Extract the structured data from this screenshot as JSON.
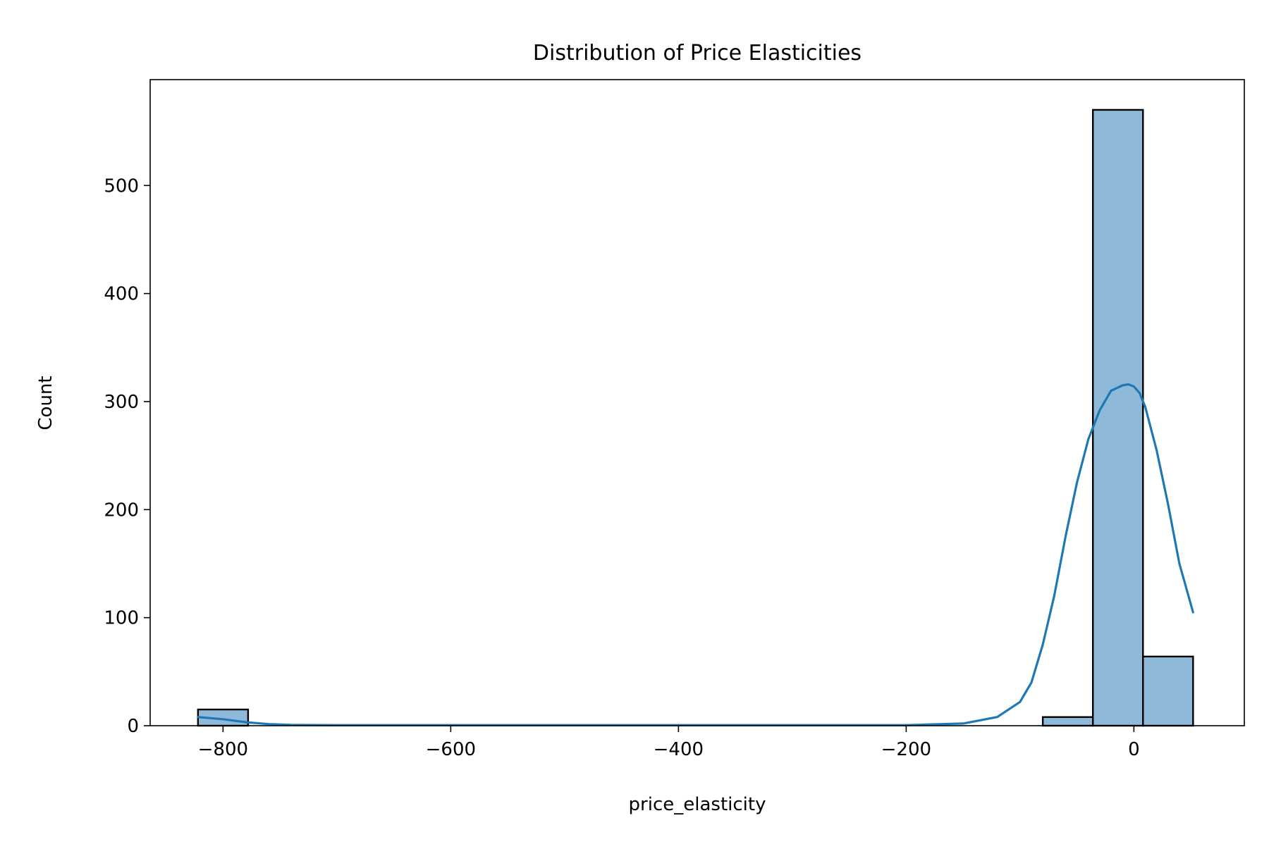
{
  "chart_data": {
    "type": "bar",
    "title": "Distribution of Price Elasticities",
    "xlabel": "price_elasticity",
    "ylabel": "Count",
    "xlim": [
      -864,
      97
    ],
    "ylim": [
      0,
      598
    ],
    "xticks": [
      -800,
      -600,
      -400,
      -200,
      0
    ],
    "xtick_labels": [
      "−800",
      "−600",
      "−400",
      "∀",
      "0"
    ],
    "yticks": [
      0,
      100,
      200,
      300,
      400,
      500
    ],
    "ytick_labels": [
      "0",
      "100",
      "200",
      "300",
      "400",
      "500"
    ],
    "grid": false,
    "bins": [
      {
        "x0": -822,
        "x1": -778,
        "count": 15
      },
      {
        "x0": -778,
        "x1": -734,
        "count": 0
      },
      {
        "x0": -734,
        "x1": -690,
        "count": 0
      },
      {
        "x0": -690,
        "x1": -646,
        "count": 0
      },
      {
        "x0": -646,
        "x1": -602,
        "count": 0
      },
      {
        "x0": -602,
        "x1": -558,
        "count": 0
      },
      {
        "x0": -558,
        "x1": -514,
        "count": 0
      },
      {
        "x0": -514,
        "x1": -470,
        "count": 0
      },
      {
        "x0": -470,
        "x1": -426,
        "count": 0
      },
      {
        "x0": -426,
        "x1": -382,
        "count": 0
      },
      {
        "x0": -382,
        "x1": -338,
        "count": 0
      },
      {
        "x0": -338,
        "x1": -294,
        "count": 0
      },
      {
        "x0": -294,
        "x1": -250,
        "count": 0
      },
      {
        "x0": -250,
        "x1": -206,
        "count": 0
      },
      {
        "x0": -206,
        "x1": -162,
        "count": 0
      },
      {
        "x0": -162,
        "x1": -118,
        "count": 0
      },
      {
        "x0": -118,
        "x1": -80,
        "count": 0
      },
      {
        "x0": -80,
        "x1": -36,
        "count": 8
      },
      {
        "x0": -36,
        "x1": 8,
        "count": 570
      },
      {
        "x0": 8,
        "x1": 52,
        "count": 64
      }
    ],
    "kde": {
      "x": [
        -822,
        -800,
        -778,
        -760,
        -740,
        -700,
        -600,
        -400,
        -200,
        -150,
        -120,
        -100,
        -90,
        -80,
        -70,
        -60,
        -50,
        -40,
        -30,
        -20,
        -10,
        -5,
        0,
        5,
        10,
        20,
        30,
        40,
        52
      ],
      "y": [
        8,
        6,
        3,
        1.5,
        0.8,
        0.5,
        0.5,
        0.5,
        0.5,
        2,
        8,
        22,
        40,
        75,
        120,
        175,
        225,
        265,
        292,
        310,
        315,
        316,
        314,
        308,
        295,
        255,
        205,
        150,
        105
      ]
    },
    "colors": {
      "bar_fill": "#8fb9d9",
      "bar_edge": "#000000",
      "kde_line": "#1f77b4"
    }
  }
}
